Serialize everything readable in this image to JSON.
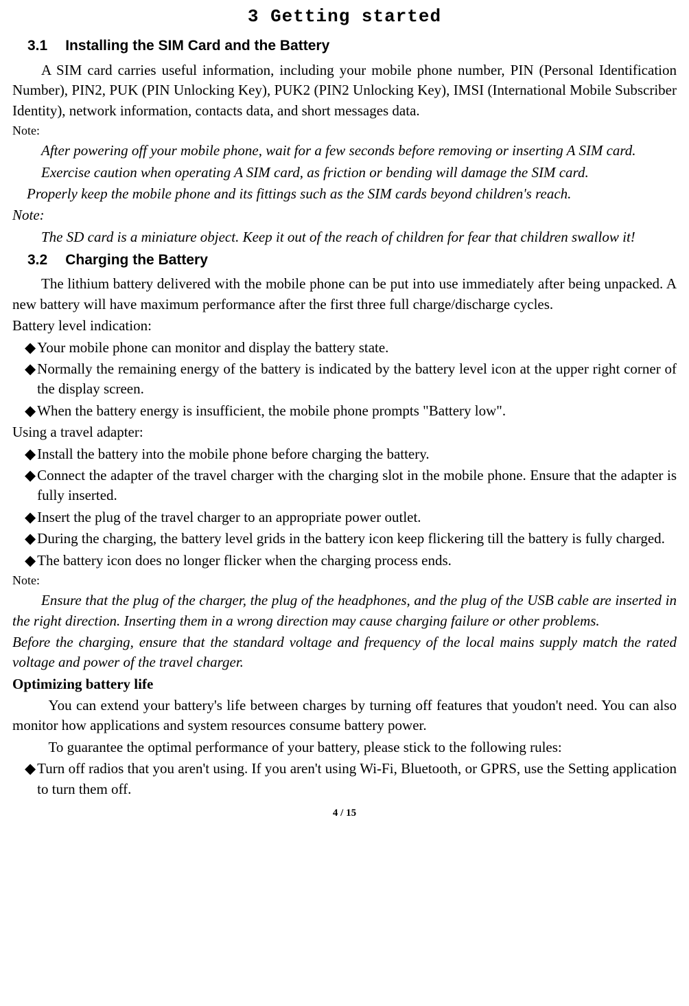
{
  "page": {
    "title": "3 Getting started",
    "footer": "4 / 15"
  },
  "s31": {
    "num": "3.1",
    "heading": "Installing the SIM Card and the Battery",
    "p1": "A SIM card carries useful information, including your mobile phone number, PIN (Personal Identification Number), PIN2, PUK (PIN Unlocking Key), PUK2 (PIN2 Unlocking Key), IMSI (International Mobile Subscriber Identity), network information, contacts data, and short messages data.",
    "noteLabel": "Note:",
    "note1": "After powering off your mobile phone, wait for a few seconds before removing or inserting A SIM card.",
    "note2": "Exercise caution when operating A SIM card, as friction or bending will damage the SIM card.",
    "note3": "Properly keep the mobile phone and its fittings such as the SIM cards beyond children's reach.",
    "noteLabel2": "Note:",
    "note4": "The SD card is a miniature object. Keep it out of the reach of children for fear that children swallow it!"
  },
  "s32": {
    "num": "3.2",
    "heading": "Charging the Battery",
    "p1": "The lithium battery delivered with the mobile phone can be put into use immediately after being unpacked. A new battery will have maximum performance after the first three full charge/discharge cycles.",
    "bli": "Battery level indication:",
    "b1": "Your mobile phone can monitor and display the battery state.",
    "b2": "Normally the remaining energy of the battery is indicated by the battery level icon at the upper right corner of the display screen.",
    "b3": "When the battery energy is insufficient, the mobile phone prompts \"Battery low\".",
    "uta": "Using a travel adapter:",
    "b4": "Install the battery into the mobile phone before charging the battery.",
    "b5": "Connect the adapter of the travel charger with the charging slot in the mobile phone. Ensure that the adapter is fully inserted.",
    "b6": "Insert the plug of the travel charger to an appropriate power outlet.",
    "b7": "During the charging, the battery level grids in the battery icon keep flickering till the battery is fully charged.",
    "b8": "The battery icon does no longer flicker when the charging process ends.",
    "noteLabel": "Note:",
    "note1": "Ensure that the plug of the charger, the plug of the headphones, and the plug of the USB cable are inserted in the right direction. Inserting them in a wrong direction may cause charging failure or other problems.",
    "note2": "Before the charging, ensure that the standard voltage and frequency of the local mains supply match the rated voltage and power of the travel charger.",
    "obl": "Optimizing battery life",
    "p2": "You can extend your battery's life between charges by turning off features that youdon't need. You can also monitor how applications and system resources consume battery power.",
    "p3": "To guarantee the optimal performance of your battery, please stick to the following rules:",
    "b9": "Turn off radios that you aren't using. If you aren't using Wi-Fi, Bluetooth, or GPRS, use the Setting application to turn them off."
  },
  "marker": "◆"
}
